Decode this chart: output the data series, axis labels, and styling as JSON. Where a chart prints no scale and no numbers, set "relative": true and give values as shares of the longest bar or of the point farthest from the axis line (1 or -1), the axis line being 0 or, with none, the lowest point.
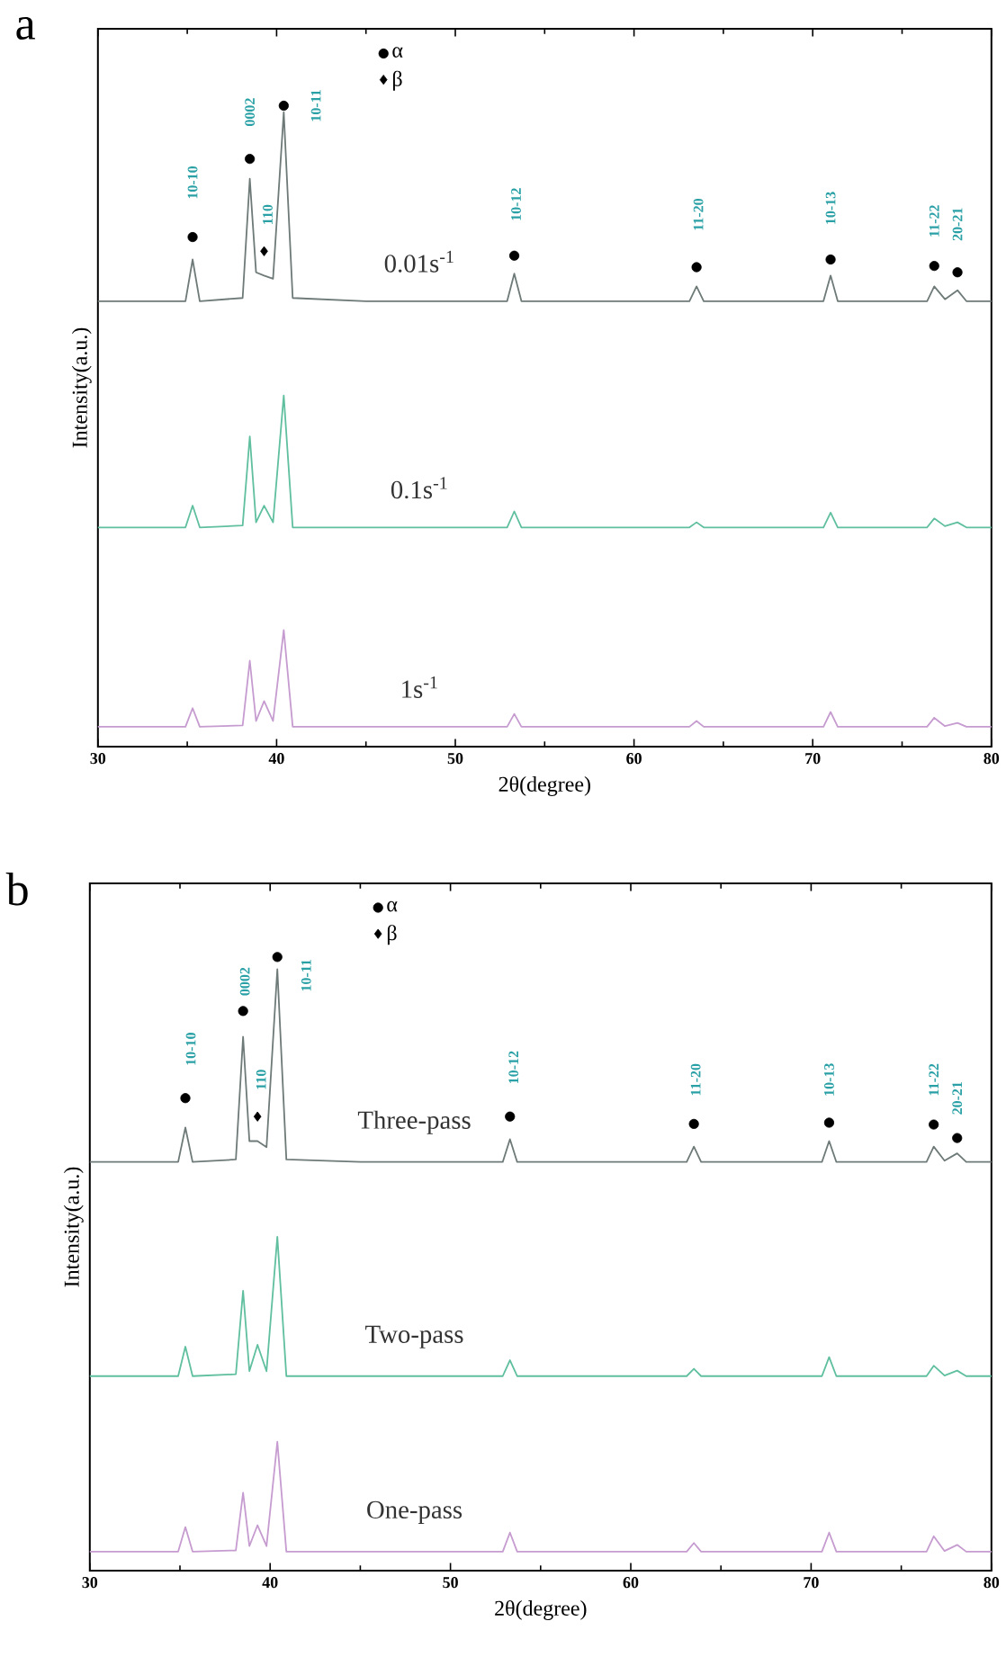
{
  "chart_data": [
    {
      "type": "line",
      "title": "a",
      "xlabel": "2θ(degree)",
      "ylabel": "Intensity(a.u.)",
      "relative": true,
      "xlim": [
        30,
        80
      ],
      "xticks": [
        30,
        40,
        50,
        60,
        70,
        80
      ],
      "tick_labels": "x",
      "legend": "top",
      "grid": false,
      "x": [
        30,
        34.9,
        35.3,
        35.7,
        38.1,
        38.5,
        38.85,
        39.3,
        39.8,
        40.4,
        40.9,
        45,
        52.9,
        53.3,
        53.7,
        57,
        63.1,
        63.5,
        63.9,
        67,
        70.6,
        71,
        71.4,
        75,
        76.4,
        76.8,
        77.4,
        78.1,
        78.6,
        80
      ],
      "series": [
        {
          "name": "0.01s$^{-1}$",
          "color": "#6e7a78",
          "values": [
            0.695,
            0.695,
            0.76,
            0.695,
            0.7,
            0.886,
            0.74,
            0.735,
            0.73,
            0.99,
            0.7,
            0.695,
            0.695,
            0.738,
            0.695,
            0.695,
            0.695,
            0.718,
            0.695,
            0.695,
            0.695,
            0.735,
            0.695,
            0.695,
            0.695,
            0.718,
            0.698,
            0.712,
            0.695,
            0.695
          ]
        },
        {
          "name": "0.1s$^{-1}$",
          "color": "#5fbf9f",
          "values": [
            0.342,
            0.342,
            0.376,
            0.342,
            0.345,
            0.484,
            0.35,
            0.376,
            0.35,
            0.548,
            0.342,
            0.342,
            0.342,
            0.367,
            0.342,
            0.342,
            0.342,
            0.35,
            0.342,
            0.342,
            0.342,
            0.365,
            0.342,
            0.342,
            0.342,
            0.356,
            0.344,
            0.35,
            0.342,
            0.342
          ]
        },
        {
          "name": "1s$^{-1}$",
          "color": "#c69bd0",
          "values": [
            0.031,
            0.031,
            0.06,
            0.031,
            0.033,
            0.134,
            0.04,
            0.071,
            0.04,
            0.182,
            0.031,
            0.031,
            0.031,
            0.051,
            0.031,
            0.031,
            0.031,
            0.04,
            0.031,
            0.031,
            0.031,
            0.054,
            0.031,
            0.031,
            0.031,
            0.045,
            0.032,
            0.037,
            0.031,
            0.031
          ]
        },
        {
          "name": "α",
          "type": "scatter",
          "marker": "circle",
          "color": "#000000",
          "x": [
            35.3,
            38.5,
            40.4,
            53.3,
            63.5,
            71,
            76.8,
            78.1
          ],
          "values": [
            0.795,
            0.917,
            1.0,
            0.766,
            0.748,
            0.76,
            0.75,
            0.74
          ]
        },
        {
          "name": "β",
          "type": "scatter",
          "marker": "diamond",
          "color": "#000000",
          "x": [
            39.3
          ],
          "values": [
            0.773
          ]
        }
      ],
      "annotations": [
        "10-10",
        "0002",
        "110",
        "10-11",
        "10-12",
        "11-20",
        "10-13",
        "11-22",
        "20-21"
      ]
    },
    {
      "type": "line",
      "title": "b",
      "xlabel": "2θ(degree)",
      "ylabel": "Intensity(a.u.)",
      "relative": true,
      "xlim": [
        30,
        80
      ],
      "xticks": [
        30,
        40,
        50,
        60,
        70,
        80
      ],
      "tick_labels": "x",
      "legend": "top",
      "grid": false,
      "x": [
        30,
        34.9,
        35.3,
        35.7,
        38.1,
        38.5,
        38.85,
        39.3,
        39.8,
        40.4,
        40.9,
        45,
        52.9,
        53.3,
        53.7,
        57,
        63.1,
        63.5,
        63.9,
        67,
        70.6,
        71,
        71.4,
        75,
        76.4,
        76.8,
        77.4,
        78.1,
        78.6,
        80
      ],
      "series": [
        {
          "name": "Three-pass",
          "color": "#6e7a78",
          "values": [
            0.666,
            0.666,
            0.722,
            0.666,
            0.67,
            0.87,
            0.7,
            0.7,
            0.69,
            0.98,
            0.67,
            0.666,
            0.666,
            0.703,
            0.666,
            0.666,
            0.666,
            0.691,
            0.666,
            0.666,
            0.666,
            0.7,
            0.666,
            0.666,
            0.666,
            0.691,
            0.668,
            0.68,
            0.666,
            0.666
          ]
        },
        {
          "name": "Two-pass",
          "color": "#5fbf9f",
          "values": [
            0.317,
            0.317,
            0.365,
            0.317,
            0.32,
            0.456,
            0.325,
            0.368,
            0.325,
            0.544,
            0.317,
            0.317,
            0.317,
            0.343,
            0.317,
            0.317,
            0.317,
            0.329,
            0.317,
            0.317,
            0.317,
            0.348,
            0.317,
            0.317,
            0.317,
            0.334,
            0.318,
            0.326,
            0.317,
            0.317
          ]
        },
        {
          "name": "One-pass",
          "color": "#c69bd0",
          "values": [
            0.031,
            0.031,
            0.071,
            0.031,
            0.033,
            0.127,
            0.04,
            0.074,
            0.04,
            0.21,
            0.031,
            0.031,
            0.031,
            0.062,
            0.031,
            0.031,
            0.031,
            0.045,
            0.031,
            0.031,
            0.031,
            0.062,
            0.031,
            0.031,
            0.031,
            0.056,
            0.032,
            0.042,
            0.031,
            0.031
          ]
        },
        {
          "name": "α",
          "type": "scatter",
          "marker": "circle",
          "color": "#000000",
          "x": [
            35.3,
            38.5,
            40.4,
            53.3,
            63.5,
            71,
            76.8,
            78.1
          ],
          "values": [
            0.77,
            0.912,
            1.0,
            0.74,
            0.728,
            0.73,
            0.727,
            0.705
          ]
        },
        {
          "name": "β",
          "type": "scatter",
          "marker": "diamond",
          "color": "#000000",
          "x": [
            39.3
          ],
          "values": [
            0.74
          ]
        }
      ],
      "annotations": [
        "10-10",
        "0002",
        "110",
        "10-11",
        "10-12",
        "11-20",
        "10-13",
        "11-22",
        "20-21"
      ]
    }
  ]
}
